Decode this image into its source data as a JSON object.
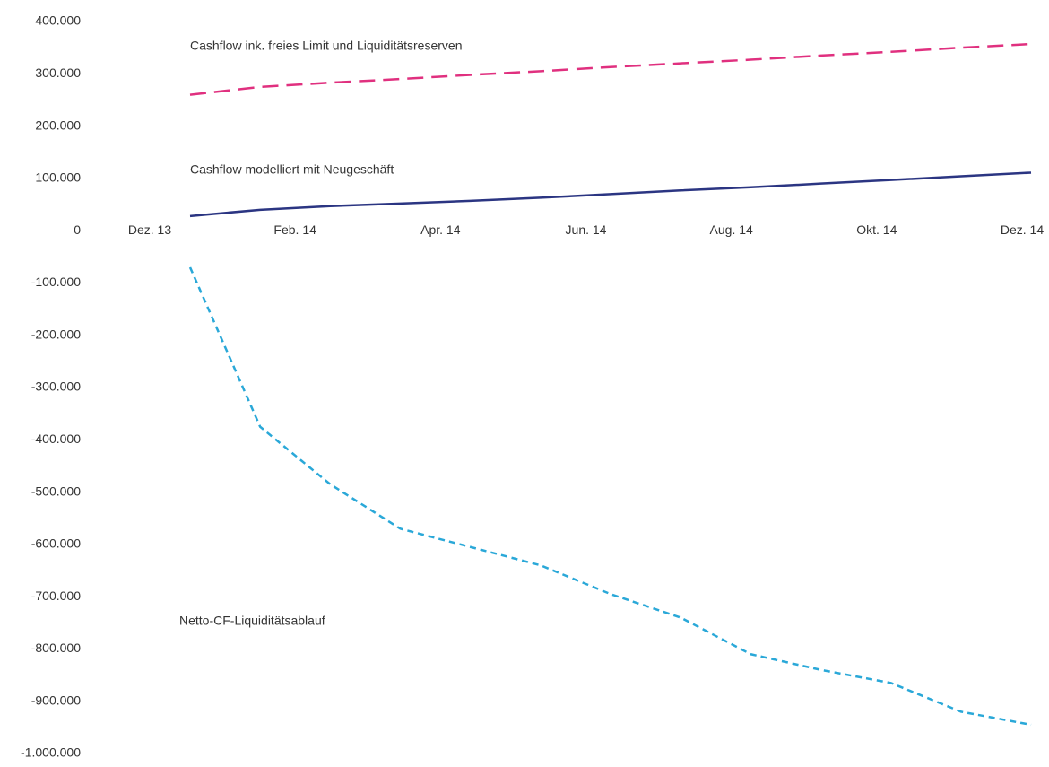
{
  "chart_data": {
    "type": "line",
    "categories": [
      "Dez. 13",
      null,
      "Feb. 14",
      null,
      "Apr. 14",
      null,
      "Jun. 14",
      null,
      "Aug. 14",
      null,
      "Okt. 14",
      null,
      "Dez. 14"
    ],
    "series": [
      {
        "name": "Cashflow ink. freies Limit und Liquiditätsreserven",
        "color": "#e0307f",
        "dash": "long",
        "values": [
          260000,
          275000,
          283000,
          290000,
          298000,
          305000,
          313000,
          320000,
          327000,
          335000,
          342000,
          350000,
          357000
        ]
      },
      {
        "name": "Cashflow modelliert mit Neugeschäft",
        "color": "#2b3582",
        "dash": "solid",
        "values": [
          28000,
          40000,
          47000,
          52000,
          57000,
          63000,
          70000,
          77000,
          83000,
          90000,
          97000,
          104000,
          111000
        ]
      },
      {
        "name": "Netto-CF-Liquiditätsablauf",
        "color": "#2aa8d8",
        "dash": "short",
        "values": [
          -70000,
          -375000,
          -485000,
          -570000,
          -605000,
          -640000,
          -695000,
          -740000,
          -810000,
          -840000,
          -865000,
          -920000,
          -945000
        ]
      }
    ],
    "ylim": [
      -1000000,
      400000
    ],
    "yticks": [
      {
        "value": 400000,
        "label": "400.000"
      },
      {
        "value": 300000,
        "label": "300.000"
      },
      {
        "value": 200000,
        "label": "200.000"
      },
      {
        "value": 100000,
        "label": "100.000"
      },
      0,
      {
        "value": -100000,
        "label": "-100.000"
      },
      {
        "value": -200000,
        "label": "-200.000"
      },
      {
        "value": -300000,
        "label": "-300.000"
      },
      {
        "value": -400000,
        "label": "-400.000"
      },
      {
        "value": -500000,
        "label": "-500.000"
      },
      {
        "value": -600000,
        "label": "-600.000"
      },
      {
        "value": -700000,
        "label": "-700.000"
      },
      {
        "value": -800000,
        "label": "-800.000"
      },
      {
        "value": -900000,
        "label": "-900.000"
      },
      {
        "value": -1000000,
        "label": "-1.000.000"
      }
    ],
    "grid": false
  }
}
